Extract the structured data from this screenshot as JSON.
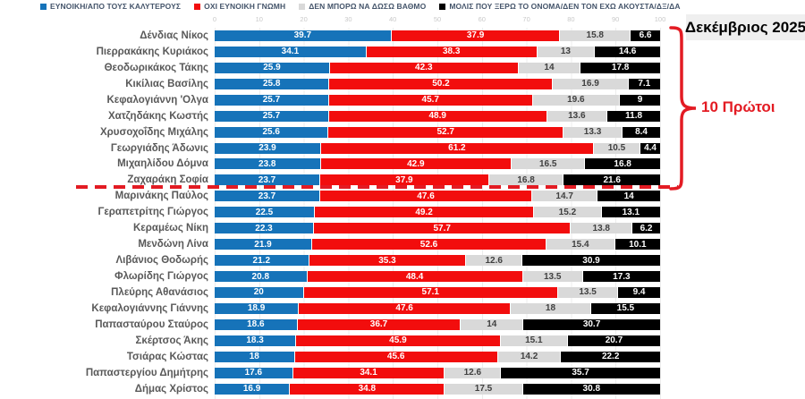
{
  "legend": {
    "items": [
      {
        "name": "favorable",
        "label": "ΕΥΝΟΙΚΗ/ΑΠΟ ΤΟΥΣ ΚΑΛΥΤΕΡΟΥΣ",
        "color": "#1673B9"
      },
      {
        "name": "unfavorable",
        "label": "ΟΧΙ ΕΥΝΟΙΚΗ ΓΝΩΜΗ",
        "color": "#F20D0D"
      },
      {
        "name": "cannot-rate",
        "label": "ΔΕΝ ΜΠΟΡΩ ΝΑ ΔΩΣΩ ΒΑΘΜΟ",
        "color": "#D9D9D9"
      },
      {
        "name": "barely-know",
        "label": "ΜΟΛΙΣ ΠΟΥ ΞΕΡΩ ΤΟ ΟΝΟΜΑ/ΔΕΝ ΤΟΝ ΕΧΩ ΑΚΟΥΣΤΑ/ΔΞ/ΔΑ",
        "color": "#000000"
      }
    ]
  },
  "annotations": {
    "date_label": "Δεκέμβριος 2025",
    "top10_label": "10 Πρώτοι",
    "accent_red": "#E31B23"
  },
  "chart_data": {
    "type": "bar",
    "orientation": "horizontal",
    "stacked": true,
    "xlim": [
      0,
      100
    ],
    "x_ticks": [
      0,
      10,
      20,
      30,
      40,
      50,
      60,
      70,
      80,
      90,
      100
    ],
    "grid": true,
    "legend_position": "top",
    "separator_after_index": 9,
    "categories": [
      "Δένδιας Νίκος",
      "Πιερρακάκης Κυριάκος",
      "Θεοδωρικάκος Τάκης",
      "Κικίλιας Βασίλης",
      "Κεφαλογιάννη 'Ολγα",
      "Χατζηδάκης Κωστής",
      "Χρυσοχοΐδης Μιχάλης",
      "Γεωργιάδης Άδωνις",
      "Μιχαηλίδου Δόμνα",
      "Ζαχαράκη Σοφία",
      "Μαρινάκης Παύλος",
      "Γεραπετρίτης Γιώργος",
      "Κεραμέως Νίκη",
      "Μενδώνη Λίνα",
      "Λιβάνιος Θοδωρής",
      "Φλωρίδης Γιώργος",
      "Πλεύρης Αθανάσιος",
      "Κεφαλογιάννης Γιάννης",
      "Παπασταύρου Σταύρος",
      "Σκέρτσος Άκης",
      "Τσιάρας Κώστας",
      "Παπαστεργίου Δημήτρης",
      "Δήμας Χρίστος"
    ],
    "series": [
      {
        "name": "ΕΥΝΟΙΚΗ/ΑΠΟ ΤΟΥΣ ΚΑΛΥΤΕΡΟΥΣ",
        "color": "#1673B9",
        "text_color": "#FFFFFF",
        "values": [
          39.7,
          34.1,
          25.9,
          25.8,
          25.7,
          25.7,
          25.6,
          23.9,
          23.8,
          23.7,
          23.7,
          22.5,
          22.3,
          21.9,
          21.2,
          20.8,
          20,
          18.9,
          18.6,
          18.3,
          18,
          17.6,
          16.9
        ]
      },
      {
        "name": "ΟΧΙ ΕΥΝΟΙΚΗ ΓΝΩΜΗ",
        "color": "#F20D0D",
        "text_color": "#FFFFFF",
        "values": [
          37.9,
          38.3,
          42.3,
          50.2,
          45.7,
          48.9,
          52.7,
          61.2,
          42.9,
          37.9,
          47.6,
          49.2,
          57.7,
          52.6,
          35.3,
          48.4,
          57.1,
          47.6,
          36.7,
          45.9,
          45.6,
          34.1,
          34.8
        ]
      },
      {
        "name": "ΔΕΝ ΜΠΟΡΩ ΝΑ ΔΩΣΩ ΒΑΘΜΟ",
        "color": "#D9D9D9",
        "text_color": "#404040",
        "values": [
          15.8,
          13,
          14,
          16.9,
          19.6,
          13.6,
          13.3,
          10.5,
          16.5,
          16.8,
          14.7,
          15.2,
          13.8,
          15.4,
          12.6,
          13.5,
          13.5,
          18,
          14,
          15.1,
          14.2,
          12.6,
          17.5
        ]
      },
      {
        "name": "ΜΟΛΙΣ ΠΟΥ ΞΕΡΩ ΤΟ ΟΝΟΜΑ/ΔΕΝ ΤΟΝ ΕΧΩ ΑΚΟΥΣΤΑ/ΔΞ/ΔΑ",
        "color": "#000000",
        "text_color": "#FFFFFF",
        "values": [
          6.6,
          14.6,
          17.8,
          7.1,
          9,
          11.8,
          8.4,
          4.4,
          16.8,
          21.6,
          14,
          13.1,
          6.2,
          10.1,
          30.9,
          17.3,
          9.4,
          15.5,
          30.7,
          20.7,
          22.2,
          35.7,
          30.8
        ]
      }
    ]
  }
}
